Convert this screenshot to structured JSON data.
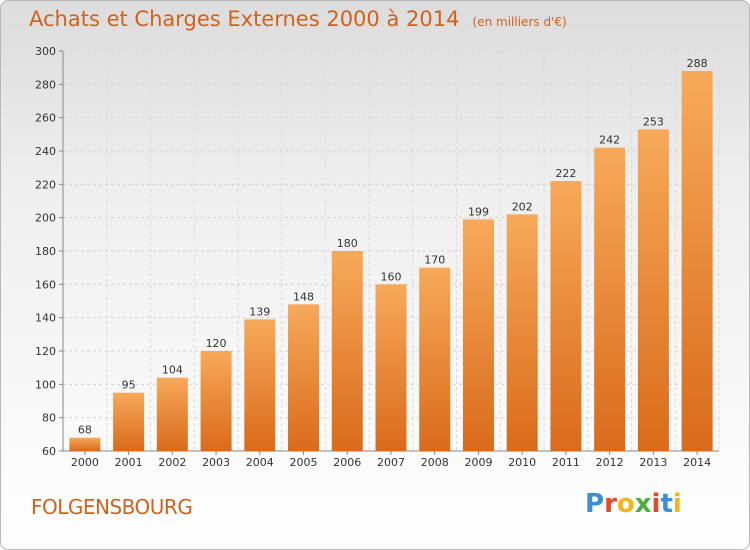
{
  "chart_data": {
    "type": "bar",
    "title": "Achats et Charges Externes 2000 à 2014",
    "subtitle": "(en milliers d'€)",
    "categories": [
      "2000",
      "2001",
      "2002",
      "2003",
      "2004",
      "2005",
      "2006",
      "2007",
      "2008",
      "2009",
      "2010",
      "2011",
      "2012",
      "2013",
      "2014"
    ],
    "values": [
      68,
      95,
      104,
      120,
      139,
      148,
      180,
      160,
      170,
      199,
      202,
      222,
      242,
      253,
      288
    ],
    "ylim": [
      60,
      300
    ],
    "yticks": [
      60,
      80,
      100,
      120,
      140,
      160,
      180,
      200,
      220,
      240,
      260,
      280,
      300
    ],
    "grid": true,
    "bar_color": "#e8822e",
    "xlabel": "",
    "ylabel": ""
  },
  "footer": {
    "city": "FOLGENSBOURG",
    "brand": "Proxiti",
    "brand_colors": [
      "#3a8fd8",
      "#e24a2a",
      "#f2b51c",
      "#4cae3c",
      "#e24a2a",
      "#3a8fd8",
      "#f2b51c"
    ]
  }
}
